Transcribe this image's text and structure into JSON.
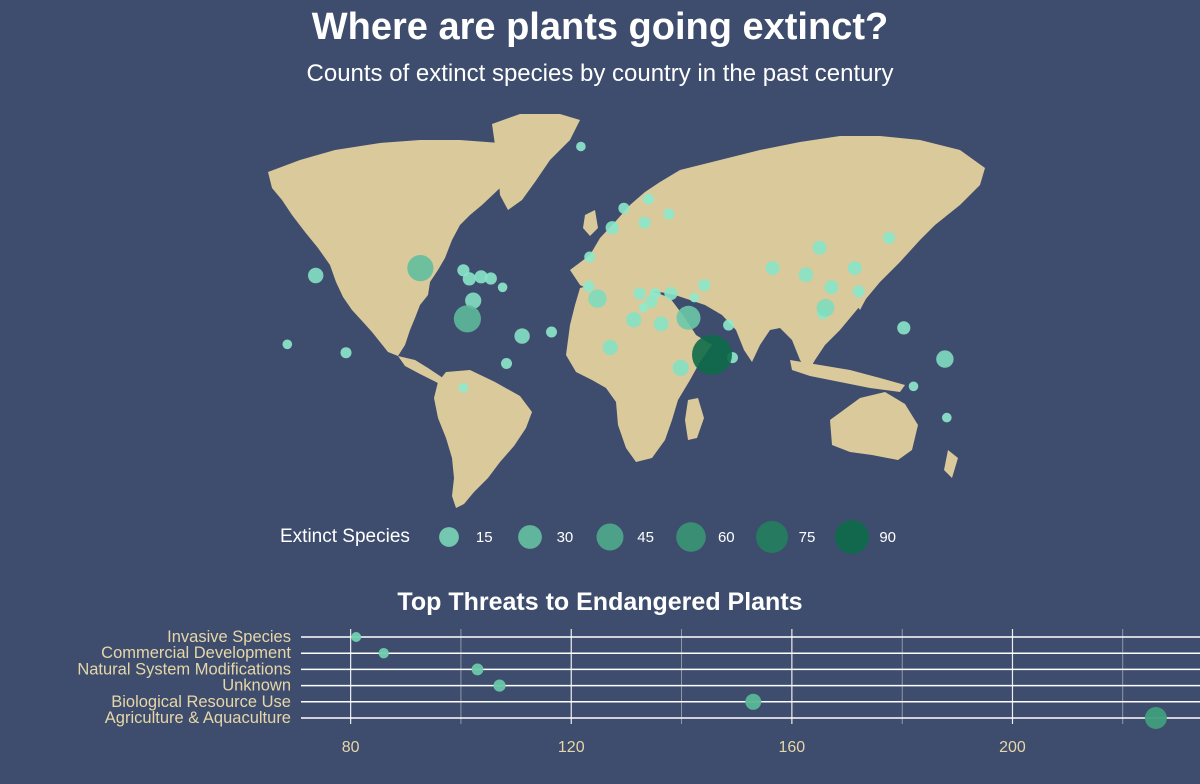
{
  "title": "Where are plants going extinct?",
  "subtitle": "Counts of extinct species by country in the past century",
  "colors": {
    "background": "#3e4d6e",
    "land": "#dac99b",
    "point_low": "#8eeacc",
    "point_high": "#0d6b48",
    "text": "#ffffff",
    "axis_text": "#e6d6a8",
    "grid": "#ffffff"
  },
  "chart_data": [
    {
      "type": "scatter",
      "subtype": "bubble-map",
      "title": "Where are plants going extinct?",
      "subtitle": "Counts of extinct species by country in the past century",
      "legend": {
        "title": "Extinct Species",
        "values": [
          15,
          30,
          45,
          60,
          75,
          90
        ],
        "placement": "bottom"
      },
      "points": [
        {
          "lon": -102,
          "lat": 23,
          "value": 32
        },
        {
          "lon": -78,
          "lat": -1.5,
          "value": 35
        },
        {
          "lon": 47,
          "lat": -19,
          "value": 90
        },
        {
          "lon": 35,
          "lat": -1,
          "value": 25
        },
        {
          "lon": -155.5,
          "lat": 19.6,
          "value": 7
        },
        {
          "lon": -140,
          "lat": -18,
          "value": 2
        },
        {
          "lon": 105,
          "lat": 4,
          "value": 11
        },
        {
          "lon": 166,
          "lat": -21,
          "value": 10
        },
        {
          "lon": -11.5,
          "lat": 8.5,
          "value": 12
        },
        {
          "lon": 21,
          "lat": -4,
          "value": 6
        },
        {
          "lon": 31,
          "lat": -25,
          "value": 8
        },
        {
          "lon": 7,
          "lat": -2,
          "value": 7
        },
        {
          "lon": -75,
          "lat": 7.5,
          "value": 8
        },
        {
          "lon": -50,
          "lat": -10,
          "value": 7
        },
        {
          "lon": -5,
          "lat": -15.5,
          "value": 7
        },
        {
          "lon": 95,
          "lat": 20,
          "value": 6
        },
        {
          "lon": 120,
          "lat": 23,
          "value": 5
        },
        {
          "lon": 78,
          "lat": 23,
          "value": 5
        },
        {
          "lon": 102,
          "lat": 32,
          "value": 5
        },
        {
          "lon": 108,
          "lat": 14,
          "value": 5
        },
        {
          "lon": 145,
          "lat": -6,
          "value": 4
        },
        {
          "lon": -77,
          "lat": 18,
          "value": 4
        },
        {
          "lon": -71,
          "lat": 19,
          "value": 4
        },
        {
          "lon": -4,
          "lat": 40,
          "value": 4
        },
        {
          "lon": 26,
          "lat": 11,
          "value": 4
        },
        {
          "lon": 12.5,
          "lat": 41.9,
          "value": 3
        },
        {
          "lon": 43,
          "lat": 15,
          "value": 3
        },
        {
          "lon": 16,
          "lat": 7,
          "value": 3
        },
        {
          "lon": -66,
          "lat": 18.2,
          "value": 3
        },
        {
          "lon": -80,
          "lat": 22,
          "value": 3
        },
        {
          "lon": 103.8,
          "lat": 1.3,
          "value": 3
        },
        {
          "lon": 122,
          "lat": 12,
          "value": 3
        },
        {
          "lon": 10,
          "lat": 11,
          "value": 3
        },
        {
          "lon": 137.5,
          "lat": 36,
          "value": 3
        },
        {
          "lon": 57.5,
          "lat": -20.3,
          "value": 2
        },
        {
          "lon": 55.5,
          "lat": -4.6,
          "value": 2
        },
        {
          "lon": 18,
          "lat": 11,
          "value": 2
        },
        {
          "lon": -16,
          "lat": 14.5,
          "value": 2
        },
        {
          "lon": -15.5,
          "lat": 28,
          "value": 2
        },
        {
          "lon": 2,
          "lat": 47,
          "value": 2
        },
        {
          "lon": 14.5,
          "lat": 50,
          "value": 2
        },
        {
          "lon": 25,
          "lat": 45,
          "value": 2
        },
        {
          "lon": -35,
          "lat": -8,
          "value": 2
        },
        {
          "lon": -58,
          "lat": -23,
          "value": 2
        },
        {
          "lon": 167,
          "lat": -45,
          "value": 1
        },
        {
          "lon": 150,
          "lat": -33,
          "value": 1
        },
        {
          "lon": 12,
          "lat": 4,
          "value": 1
        },
        {
          "lon": 38,
          "lat": 9,
          "value": 1
        },
        {
          "lon": -170,
          "lat": -14,
          "value": 1
        },
        {
          "lon": -80,
          "lat": -33.6,
          "value": 1
        },
        {
          "lon": -60,
          "lat": 14,
          "value": 1
        },
        {
          "lon": -20,
          "lat": 64,
          "value": 1
        }
      ]
    },
    {
      "type": "scatter",
      "subtype": "dot-plot",
      "title": "Top Threats to Endangered Plants",
      "categories": [
        "Invasive Species",
        "Commercial Development",
        "Natural System Modifications",
        "Unknown",
        "Biological Resource Use",
        "Agriculture & Aquaculture"
      ],
      "values": [
        81,
        86,
        103,
        107,
        153,
        226
      ],
      "xlim": [
        71,
        234
      ],
      "x_ticks": [
        80,
        120,
        160,
        200
      ],
      "grid": true
    }
  ]
}
